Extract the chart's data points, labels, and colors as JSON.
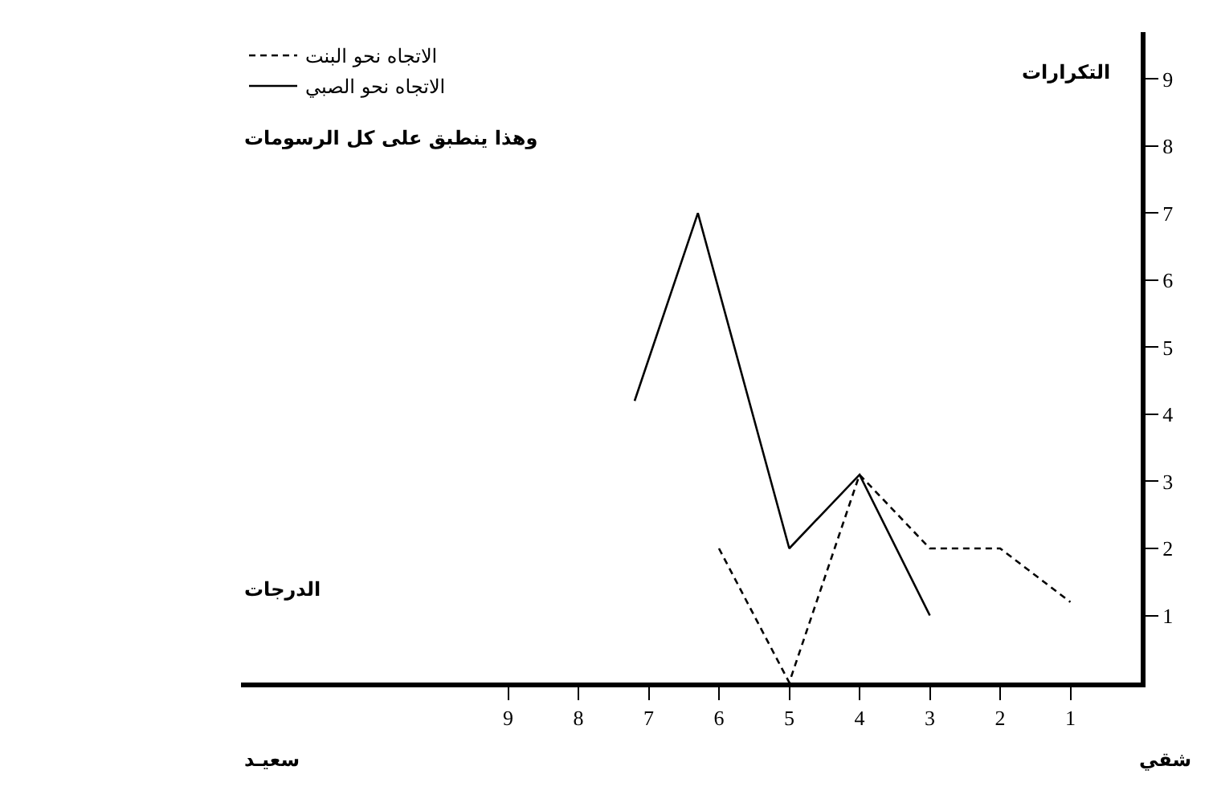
{
  "chart_data": {
    "type": "line",
    "xlabel": "الدرجات",
    "ylabel": "التكرارات",
    "annotations": [
      "وهذا ينطبق على كل الرسومات",
      "سعيـد",
      "شقي"
    ],
    "series": [
      {
        "name": "الاتجاه نحو البنت",
        "color": "#000000",
        "line_style": "dashed",
        "x": [
          6,
          5,
          4,
          3,
          2,
          1
        ],
        "values": [
          2,
          0,
          3.1,
          2,
          2,
          1.2
        ]
      },
      {
        "name": "الاتجاه نحو الصبي",
        "color": "#000000",
        "line_style": "solid",
        "x": [
          7.2,
          6.3,
          5,
          4,
          3
        ],
        "values": [
          4.2,
          7,
          2,
          3.1,
          1
        ]
      }
    ],
    "xlim": [
      12.8,
      0
    ],
    "xticks": [
      1,
      2,
      3,
      4,
      5,
      6,
      7,
      8,
      9
    ],
    "ylim": [
      0,
      9.7
    ],
    "yticks": [
      1,
      2,
      3,
      4,
      5,
      6,
      7,
      8,
      9
    ],
    "grid": false,
    "legend": "top left",
    "marker": "none"
  }
}
